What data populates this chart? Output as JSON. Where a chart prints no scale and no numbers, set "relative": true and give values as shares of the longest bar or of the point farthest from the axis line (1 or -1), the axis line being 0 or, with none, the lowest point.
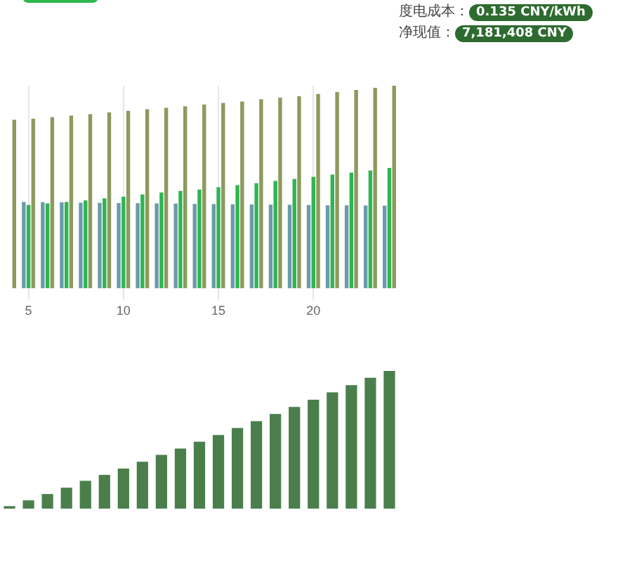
{
  "chart_data": [
    {
      "type": "other",
      "annotations": [
        "度电成本：",
        "0.135 CNY/kWh",
        "净现值：",
        "7,181,408 CNY"
      ]
    },
    {
      "type": "bar",
      "relative": true,
      "grid": "x",
      "categories": [
        null,
        "5",
        null,
        null,
        null,
        null,
        "10",
        null,
        null,
        null,
        null,
        "15",
        null,
        null,
        null,
        null,
        "20",
        null,
        null,
        null,
        null
      ],
      "series": [
        {
          "color": "#6b9bab",
          "values": [
            null,
            0.426,
            0.425,
            0.424,
            0.423,
            0.422,
            0.421,
            0.42,
            0.419,
            0.418,
            0.417,
            0.416,
            0.415,
            0.414,
            0.413,
            0.412,
            0.411,
            0.41,
            0.41,
            0.409,
            0.408
          ]
        },
        {
          "color": "#2fb552",
          "values": [
            null,
            0.411,
            0.419,
            0.426,
            0.434,
            0.444,
            0.452,
            0.463,
            0.473,
            0.481,
            0.488,
            0.499,
            0.509,
            0.519,
            0.53,
            0.54,
            0.55,
            0.561,
            0.571,
            0.581,
            0.594
          ]
        },
        {
          "color": "#8c9a5c",
          "values": [
            0.832,
            0.837,
            0.845,
            0.853,
            0.86,
            0.868,
            0.876,
            0.884,
            0.891,
            0.899,
            0.907,
            0.915,
            0.922,
            0.933,
            0.941,
            0.948,
            0.959,
            0.969,
            0.979,
            0.99,
            1
          ]
        }
      ]
    },
    {
      "type": "bar",
      "relative": true,
      "grid": "x",
      "categories": [
        null,
        null,
        null,
        null,
        null,
        null,
        null,
        null,
        null,
        null,
        null,
        null,
        null,
        null,
        null,
        null,
        null,
        null,
        null,
        null,
        null
      ],
      "series": [
        {
          "color": "#4a7f4c",
          "values": [
            0.018,
            0.06,
            0.106,
            0.152,
            0.202,
            0.245,
            0.291,
            0.34,
            0.39,
            0.436,
            0.486,
            0.535,
            0.585,
            0.635,
            0.688,
            0.738,
            0.791,
            0.844,
            0.897,
            0.95,
            1
          ]
        }
      ]
    }
  ]
}
